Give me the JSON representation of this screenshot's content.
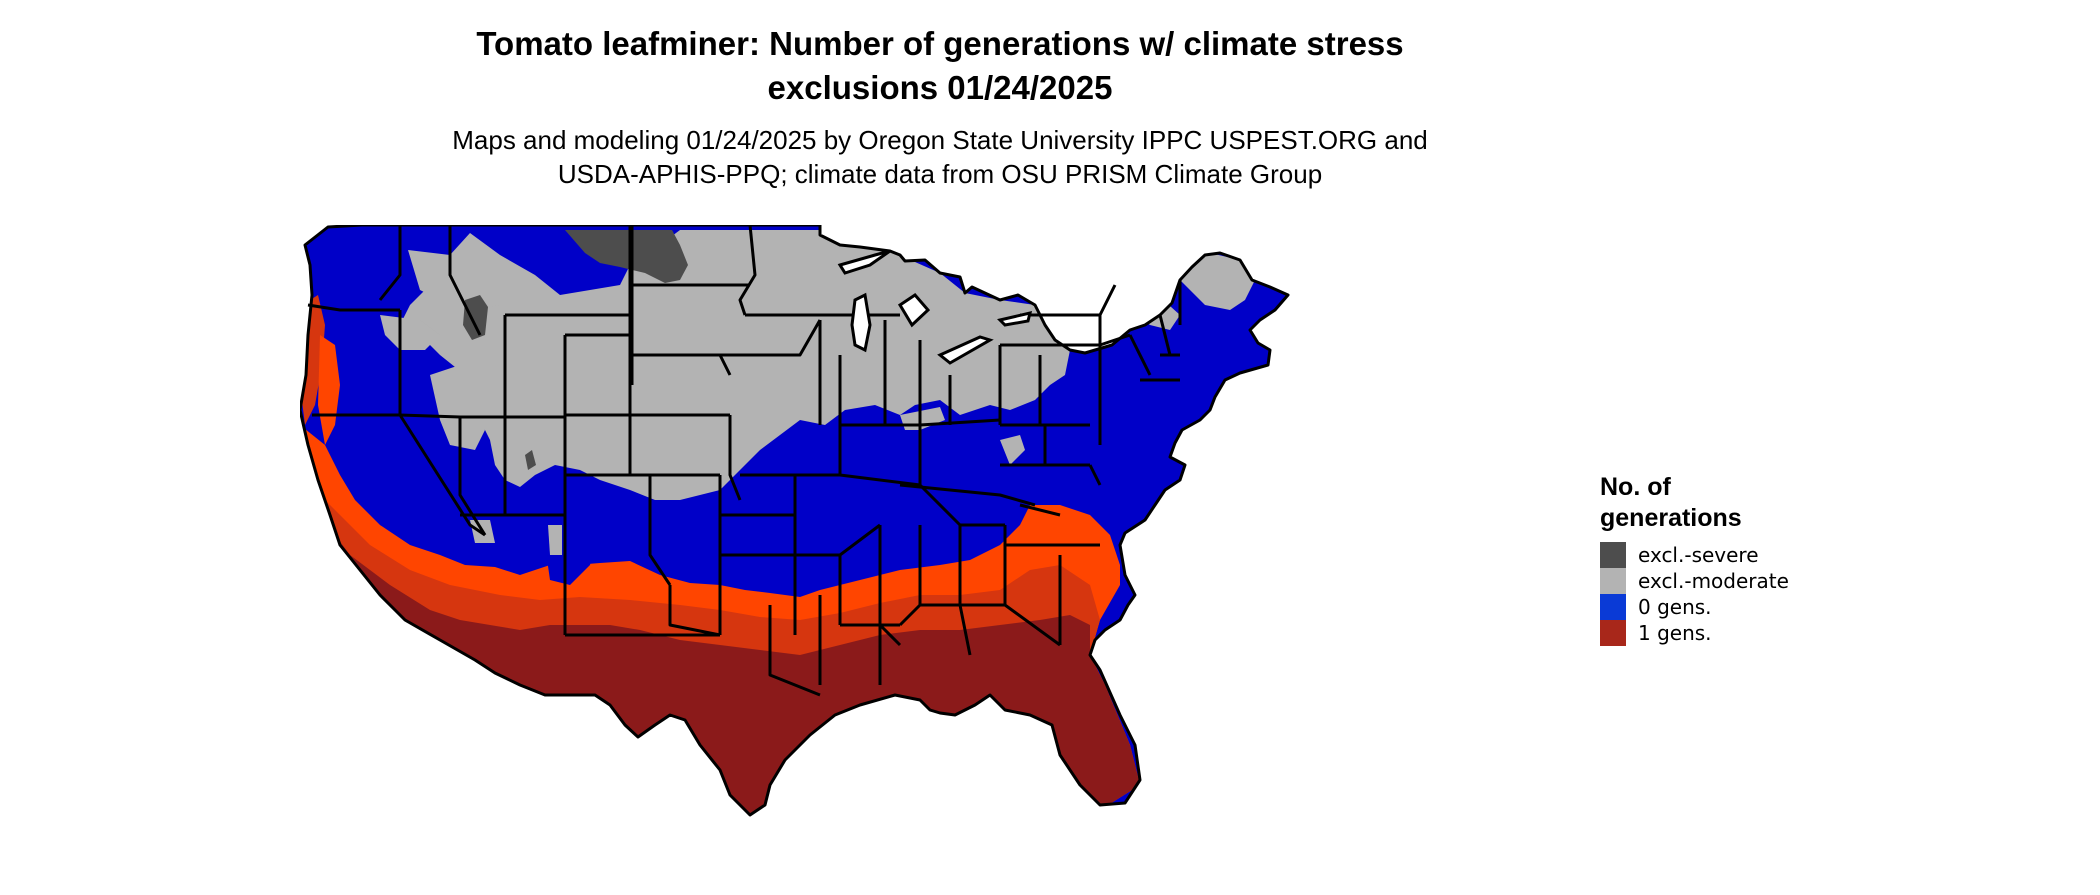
{
  "title": {
    "line1": "Tomato leafminer: Number of generations w/ climate stress",
    "line2": "exclusions 01/24/2025"
  },
  "subtitle": {
    "line1": "Maps and modeling 01/24/2025 by Oregon State University IPPC USPEST.ORG and",
    "line2": "USDA-APHIS-PPQ; climate data from OSU PRISM Climate Group"
  },
  "legend": {
    "title_line1": "No. of",
    "title_line2": "generations",
    "items": [
      {
        "label": "excl.-severe",
        "color": "#4d4d4d"
      },
      {
        "label": "excl.-moderate",
        "color": "#b3b3b3"
      },
      {
        "label": "0 gens.",
        "color": "#0a3ad6"
      },
      {
        "label": "1 gens.",
        "color": "#a8271a"
      }
    ]
  },
  "map_colors": {
    "excl_severe": "#4d4d4d",
    "excl_moderate": "#b3b3b3",
    "zero_gens": "#0000c8",
    "one_gens_light": "#ff4500",
    "one_gens_mid": "#d6360f",
    "one_gens_dark": "#8b1a1a",
    "state_borders": "#000000"
  }
}
